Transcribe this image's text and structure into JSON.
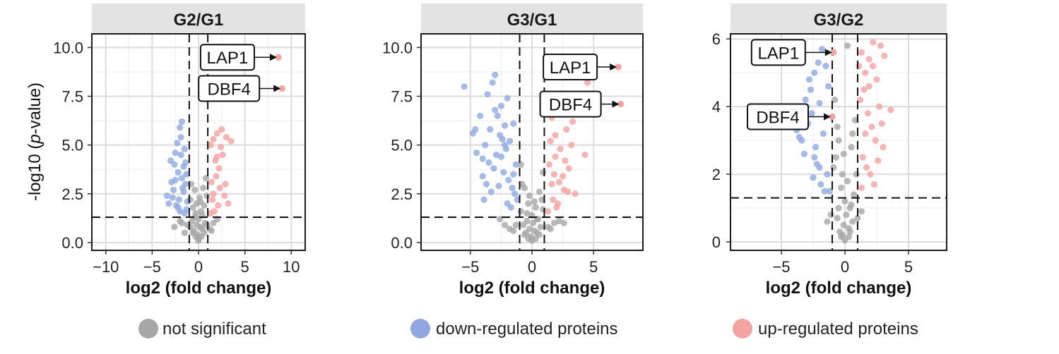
{
  "legend": {
    "items": [
      {
        "label": "not significant",
        "color": "#a6a6a6"
      },
      {
        "label": "down-regulated proteins",
        "color": "#8fa9e0"
      },
      {
        "label": "up-regulated proteins",
        "color": "#f4a3a3"
      }
    ]
  },
  "thresholds": {
    "log2fc": 1,
    "neglog10p": 1.3
  },
  "chart_data": [
    {
      "type": "scatter",
      "title": "G2/G1",
      "xlabel": "log2 (fold change)",
      "ylabel": "-log10 (p-value)",
      "xlim": [
        -11.5,
        11.5
      ],
      "ylim": [
        -0.4,
        10.7
      ],
      "xticks": [
        -10,
        -5,
        0,
        5,
        10
      ],
      "xticklabels": [
        "−10",
        "−5",
        "0",
        "5",
        "10"
      ],
      "yticks": [
        0,
        2.5,
        5,
        7.5,
        10
      ],
      "yticklabels": [
        "0.0",
        "2.5",
        "5.0",
        "7.5",
        "10.0"
      ],
      "grid": true,
      "annotations": [
        {
          "label": "LAP1",
          "x": 8.6,
          "y": 9.5
        },
        {
          "label": "DBF4",
          "x": 9.0,
          "y": 7.9
        }
      ],
      "series": [
        {
          "name": "down-regulated proteins",
          "x": [
            -3.0,
            -2.6,
            -2.3,
            -2.0,
            -1.8,
            -1.5,
            -3.2,
            -2.8,
            -2.5,
            -2.2,
            -1.9,
            -1.6,
            -1.4,
            -2.7,
            -2.4,
            -2.1,
            -1.7,
            -1.3,
            -3.4,
            -2.9,
            -2.0,
            -1.5,
            -1.2,
            -2.5,
            -1.8,
            -1.6,
            -1.4,
            -1.3,
            -2.2,
            -1.9
          ],
          "y": [
            4.2,
            4.0,
            5.1,
            5.9,
            6.2,
            4.8,
            2.0,
            2.3,
            3.2,
            3.6,
            4.5,
            3.9,
            3.0,
            2.7,
            1.9,
            2.2,
            2.8,
            3.5,
            2.4,
            3.1,
            1.6,
            1.5,
            2.1,
            4.6,
            3.3,
            2.6,
            4.1,
            1.7,
            1.8,
            5.4
          ]
        },
        {
          "name": "up-regulated proteins",
          "x": [
            1.3,
            1.6,
            2.0,
            2.5,
            3.0,
            3.5,
            1.8,
            2.2,
            2.6,
            1.4,
            1.9,
            2.3,
            2.8,
            1.5,
            2.1,
            3.2,
            1.7,
            2.4,
            1.3,
            2.9,
            2.0,
            1.6
          ],
          "y": [
            5.0,
            5.3,
            5.6,
            5.8,
            5.4,
            5.2,
            4.2,
            3.8,
            4.5,
            3.1,
            3.4,
            2.8,
            2.4,
            2.2,
            1.9,
            2.0,
            1.6,
            4.9,
            1.5,
            3.0,
            4.4,
            2.5
          ]
        },
        {
          "name": "not significant",
          "x": [
            -0.9,
            -0.6,
            -0.3,
            0.0,
            0.3,
            0.6,
            0.9,
            -0.8,
            -0.4,
            0.1,
            0.5,
            0.8,
            -0.7,
            -0.2,
            0.2,
            0.7,
            -0.5,
            0.4,
            -1.2,
            -1.5,
            1.2,
            1.6,
            -2.0,
            2.0,
            -0.1,
            0.0,
            -0.3,
            0.3,
            -0.6,
            0.6,
            -0.4,
            0.4,
            -0.9,
            0.9,
            -1.8,
            -2.6,
            1.4,
            -0.2,
            0.2,
            0.0
          ],
          "y": [
            2.2,
            1.8,
            1.5,
            1.2,
            1.6,
            1.9,
            2.4,
            3.0,
            2.7,
            2.3,
            2.8,
            3.3,
            1.1,
            0.9,
            0.8,
            1.0,
            0.6,
            0.7,
            0.9,
            0.5,
            0.7,
            1.0,
            1.1,
            1.2,
            0.4,
            0.2,
            0.3,
            0.3,
            0.5,
            0.5,
            1.3,
            1.4,
            0.8,
            0.9,
            1.0,
            0.8,
            0.6,
            2.0,
            2.1,
            0.1
          ]
        }
      ]
    },
    {
      "type": "scatter",
      "title": "G3/G1",
      "xlabel": "log2 (fold change)",
      "ylabel": "",
      "xlim": [
        -9,
        9
      ],
      "ylim": [
        -0.4,
        10.7
      ],
      "xticks": [
        -5,
        0,
        5
      ],
      "xticklabels": [
        "−5",
        "0",
        "5"
      ],
      "yticks": [
        0,
        2.5,
        5,
        7.5,
        10
      ],
      "yticklabels": [
        "0.0",
        "2.5",
        "5.0",
        "7.5",
        "10.0"
      ],
      "grid": true,
      "annotations": [
        {
          "label": "LAP1",
          "x": 7.0,
          "y": 9.0
        },
        {
          "label": "DBF4",
          "x": 7.2,
          "y": 7.1
        }
      ],
      "series": [
        {
          "name": "down-regulated proteins",
          "x": [
            -5.5,
            -4.8,
            -4.5,
            -4.0,
            -3.6,
            -3.2,
            -3.0,
            -2.8,
            -2.5,
            -2.2,
            -2.0,
            -1.8,
            -1.5,
            -1.3,
            -4.2,
            -3.8,
            -3.4,
            -2.9,
            -2.6,
            -2.3,
            -2.1,
            -1.9,
            -1.6,
            -1.4,
            -3.5,
            -3.1,
            -2.7,
            -2.4,
            -4.6,
            -4.0,
            -3.7,
            -3.3,
            -2.0,
            -1.7,
            -1.5,
            -3.9,
            -2.5,
            -1.2,
            -2.2,
            -3.0
          ],
          "y": [
            8.0,
            5.6,
            4.6,
            3.4,
            7.6,
            8.2,
            8.6,
            6.5,
            7.0,
            6.0,
            7.4,
            5.2,
            6.1,
            4.0,
            6.5,
            5.0,
            5.8,
            4.5,
            5.5,
            3.6,
            4.8,
            3.2,
            2.8,
            2.5,
            4.1,
            3.8,
            2.9,
            5.3,
            5.8,
            4.3,
            3.0,
            2.6,
            2.0,
            1.8,
            3.5,
            2.2,
            4.4,
            2.2,
            5.0,
            6.8
          ]
        },
        {
          "name": "up-regulated proteins",
          "x": [
            1.3,
            1.6,
            2.0,
            2.4,
            2.8,
            3.3,
            1.5,
            1.9,
            2.3,
            2.7,
            1.4,
            1.8,
            2.2,
            2.6,
            3.0,
            3.5,
            4.3,
            1.7,
            2.1,
            2.9,
            1.3,
            2.5,
            1.6,
            2.0,
            3.2,
            1.9,
            4.5
          ],
          "y": [
            7.1,
            6.4,
            6.8,
            7.2,
            5.8,
            6.2,
            5.2,
            5.5,
            4.8,
            4.2,
            4.0,
            3.5,
            3.1,
            2.7,
            3.8,
            2.5,
            4.5,
            2.2,
            2.0,
            2.6,
            1.6,
            3.4,
            3.0,
            1.8,
            5.0,
            4.4,
            8.2
          ]
        },
        {
          "name": "not significant",
          "x": [
            -0.9,
            -0.6,
            -0.3,
            0.0,
            0.3,
            0.6,
            0.9,
            -0.8,
            -0.4,
            0.1,
            0.5,
            0.8,
            -0.7,
            -0.2,
            0.2,
            0.7,
            -0.5,
            0.4,
            -1.3,
            -1.8,
            1.3,
            1.8,
            -2.2,
            2.2,
            -0.1,
            0.0,
            -0.3,
            0.3,
            -0.6,
            0.6,
            -0.4,
            0.4,
            -0.9,
            0.9,
            -1.5,
            1.5,
            -0.2,
            0.2,
            -2.6,
            2.6
          ],
          "y": [
            4.0,
            2.8,
            2.0,
            1.4,
            1.8,
            2.6,
            3.6,
            3.0,
            1.5,
            1.0,
            1.2,
            2.2,
            0.9,
            0.7,
            0.6,
            0.8,
            0.5,
            0.5,
            0.9,
            0.7,
            0.8,
            1.0,
            0.9,
            1.1,
            0.3,
            0.1,
            0.2,
            0.2,
            0.4,
            0.4,
            1.1,
            1.2,
            1.6,
            1.7,
            0.6,
            0.7,
            2.4,
            2.1,
            1.2,
            1.0
          ]
        }
      ]
    },
    {
      "type": "scatter",
      "title": "G3/G2",
      "xlabel": "log2 (fold change)",
      "ylabel": "",
      "xlim": [
        -9,
        8
      ],
      "ylim": [
        -0.25,
        6.15
      ],
      "xticks": [
        -5,
        0,
        5
      ],
      "xticklabels": [
        "−5",
        "0",
        "5"
      ],
      "yticks": [
        0,
        2,
        4,
        6
      ],
      "yticklabels": [
        "0",
        "2",
        "4",
        "6"
      ],
      "grid": true,
      "annotations": [
        {
          "label": "LAP1",
          "x": -0.9,
          "y": 5.6
        },
        {
          "label": "DBF4",
          "x": -1.0,
          "y": 3.7
        }
      ],
      "series": [
        {
          "name": "down-regulated proteins",
          "x": [
            -3.8,
            -3.4,
            -3.0,
            -2.7,
            -2.4,
            -2.1,
            -1.8,
            -1.5,
            -1.3,
            -3.2,
            -2.9,
            -2.6,
            -2.3,
            -2.0,
            -1.7,
            -1.4,
            -2.5,
            -2.2,
            -1.9,
            -1.6,
            -3.6,
            -3.1,
            -2.8,
            -1.2,
            -2.4,
            -2.0
          ],
          "y": [
            3.3,
            3.0,
            4.0,
            4.5,
            5.0,
            5.3,
            5.7,
            5.2,
            4.6,
            2.6,
            3.5,
            3.8,
            2.8,
            2.2,
            3.2,
            2.0,
            1.9,
            2.3,
            1.7,
            1.5,
            3.1,
            4.2,
            4.8,
            1.5,
            2.5,
            4.1
          ]
        },
        {
          "name": "up-regulated proteins",
          "x": [
            1.1,
            1.3,
            1.6,
            1.9,
            2.2,
            2.5,
            2.8,
            3.1,
            1.2,
            1.5,
            1.8,
            2.1,
            2.4,
            2.7,
            3.0,
            3.6,
            1.4,
            1.7,
            2.0,
            2.3,
            2.6,
            1.3,
            1.9,
            2.2,
            1.6,
            2.9
          ],
          "y": [
            5.2,
            5.6,
            5.0,
            5.4,
            5.2,
            4.8,
            5.8,
            5.5,
            4.2,
            4.5,
            3.8,
            3.4,
            3.0,
            4.0,
            2.8,
            3.9,
            2.5,
            2.2,
            2.0,
            1.7,
            2.4,
            1.6,
            4.6,
            5.9,
            3.2,
            3.5
          ]
        },
        {
          "name": "not significant",
          "x": [
            -0.8,
            -0.5,
            -0.2,
            0.0,
            0.2,
            0.5,
            0.8,
            -0.7,
            -0.3,
            0.1,
            0.4,
            0.7,
            -0.6,
            -0.1,
            0.3,
            0.6,
            -0.4,
            0.4,
            -1.1,
            -1.4,
            1.0,
            1.3,
            -0.2,
            0.0,
            -0.3,
            0.3,
            -0.5,
            0.5,
            -0.9,
            0.9,
            0.2,
            -0.1,
            0.6,
            -0.6
          ],
          "y": [
            4.2,
            3.0,
            2.0,
            1.2,
            1.8,
            2.8,
            3.6,
            2.5,
            1.6,
            0.8,
            1.0,
            1.4,
            0.7,
            0.5,
            0.4,
            0.6,
            0.3,
            0.3,
            0.8,
            0.6,
            0.7,
            0.9,
            0.2,
            0.05,
            0.15,
            0.15,
            1.0,
            1.1,
            2.2,
            2.0,
            5.8,
            2.6,
            3.2,
            3.4
          ]
        }
      ]
    }
  ]
}
